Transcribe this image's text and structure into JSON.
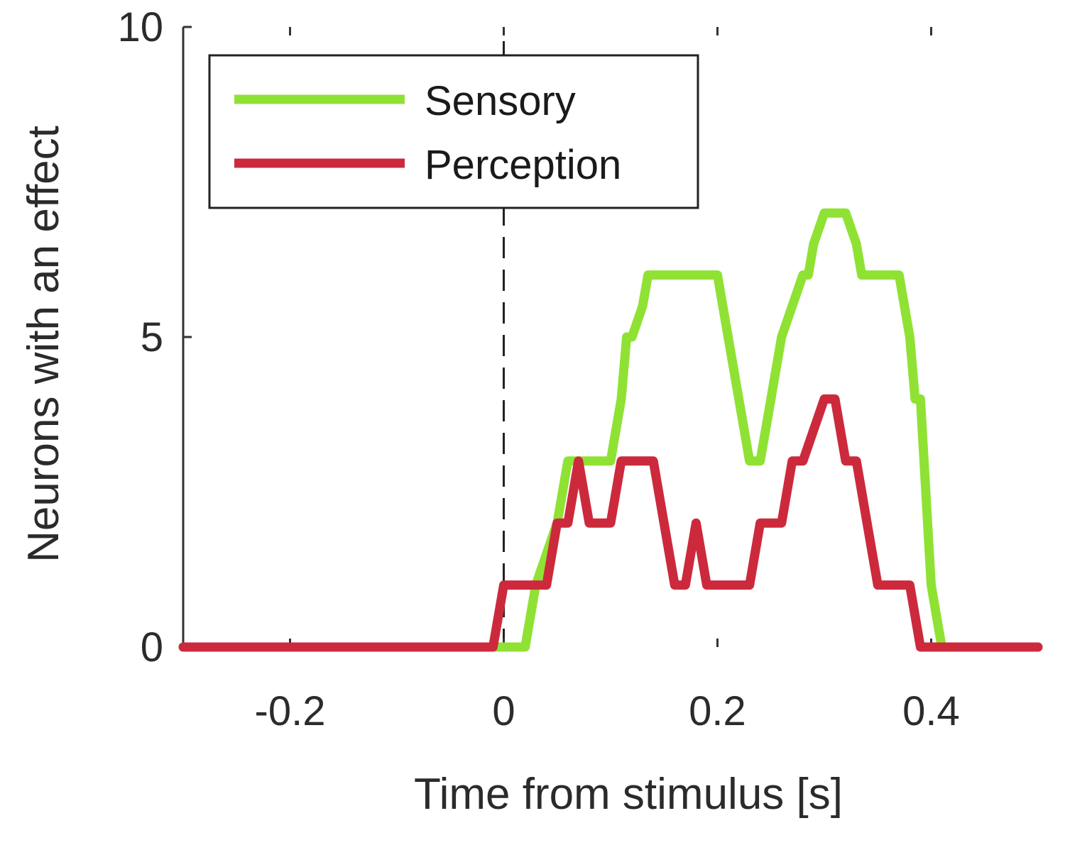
{
  "chart_data": {
    "type": "line",
    "title": "",
    "xlabel": "Time from stimulus [s]",
    "ylabel": "Neurons with an effect",
    "xlim": [
      -0.3,
      0.5
    ],
    "ylim": [
      0,
      10
    ],
    "xticks": [
      -0.2,
      0,
      0.2,
      0.4
    ],
    "xtick_labels": [
      "-0.2",
      "0",
      "0.2",
      "0.4"
    ],
    "yticks": [
      0,
      5,
      10
    ],
    "ytick_labels": [
      "0",
      "5",
      "10"
    ],
    "grid": false,
    "legend_position": "top-left",
    "stimulus_marker_x": 0,
    "series": [
      {
        "name": "Sensory",
        "color": "#8fe234",
        "x": [
          -0.3,
          0.02,
          0.03,
          0.05,
          0.055,
          0.06,
          0.1,
          0.11,
          0.115,
          0.12,
          0.13,
          0.135,
          0.14,
          0.19,
          0.2,
          0.21,
          0.22,
          0.23,
          0.24,
          0.25,
          0.26,
          0.27,
          0.28,
          0.285,
          0.29,
          0.3,
          0.31,
          0.32,
          0.33,
          0.335,
          0.34,
          0.36,
          0.37,
          0.38,
          0.385,
          0.39,
          0.4,
          0.41,
          0.5
        ],
        "y": [
          0,
          0,
          1,
          2,
          2.5,
          3,
          3,
          4,
          5,
          5,
          5.5,
          6,
          6,
          6,
          6,
          5,
          4,
          3,
          3,
          4,
          5,
          5.5,
          6,
          6,
          6.5,
          7,
          7,
          7,
          6.5,
          6,
          6,
          6,
          6,
          5,
          4,
          4,
          1,
          0,
          0
        ]
      },
      {
        "name": "Perception",
        "color": "#cc2a3c",
        "x": [
          -0.3,
          -0.01,
          0,
          0.04,
          0.05,
          0.06,
          0.07,
          0.08,
          0.1,
          0.11,
          0.13,
          0.14,
          0.15,
          0.16,
          0.17,
          0.18,
          0.19,
          0.2,
          0.21,
          0.22,
          0.23,
          0.24,
          0.25,
          0.26,
          0.27,
          0.28,
          0.29,
          0.3,
          0.31,
          0.32,
          0.33,
          0.34,
          0.35,
          0.36,
          0.37,
          0.38,
          0.39,
          0.4,
          0.5
        ],
        "y": [
          0,
          0,
          1,
          1,
          2,
          2,
          3,
          2,
          2,
          3,
          3,
          3,
          2,
          1,
          1,
          2,
          1,
          1,
          1,
          1,
          1,
          2,
          2,
          2,
          3,
          3,
          3.5,
          4,
          4,
          3,
          3,
          2,
          1,
          1,
          1,
          1,
          0,
          0,
          0
        ]
      }
    ]
  }
}
